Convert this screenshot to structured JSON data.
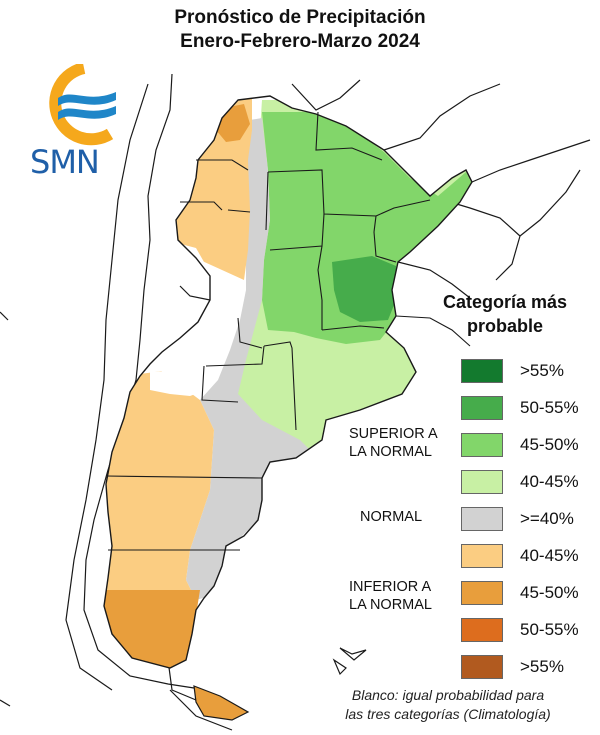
{
  "title": {
    "line1": "Pronóstico de Precipitación",
    "line2": "Enero-Febrero-Marzo 2024"
  },
  "logo": {
    "text": "SMN",
    "ring_color": "#f5a81c",
    "wave_color": "#1f86c8"
  },
  "legend": {
    "title": "Categoría más probable",
    "items": [
      {
        "label": ">55%",
        "color": "#137a2e",
        "category": "superior"
      },
      {
        "label": "50-55%",
        "color": "#46ac4b",
        "category": "superior"
      },
      {
        "label": "45-50%",
        "color": "#82d66a",
        "category": "superior"
      },
      {
        "label": "40-45%",
        "color": "#c8f0a4",
        "category": "superior"
      },
      {
        "label": ">=40%",
        "color": "#d2d2d2",
        "category": "normal"
      },
      {
        "label": "40-45%",
        "color": "#fbcd82",
        "category": "inferior"
      },
      {
        "label": "45-50%",
        "color": "#e89e3c",
        "category": "inferior"
      },
      {
        "label": "50-55%",
        "color": "#dd6d1e",
        "category": "inferior"
      },
      {
        "label": ">55%",
        "color": "#b15a1f",
        "category": "inferior"
      }
    ],
    "categories": {
      "superior": "SUPERIOR A LA NORMAL",
      "normal": "NORMAL",
      "inferior": "INFERIOR A LA NORMAL"
    }
  },
  "note": "Blanco: igual probabilidad para las tres categorías (Climatología)"
}
